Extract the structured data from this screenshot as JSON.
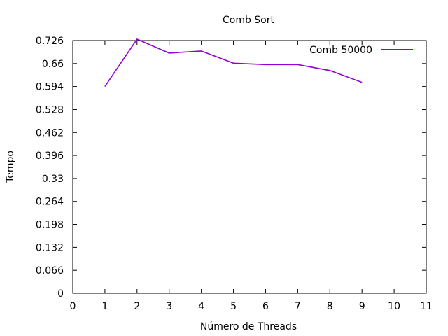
{
  "chart_data": {
    "type": "line",
    "title": "Comb Sort",
    "xlabel": "Número de Threads",
    "ylabel": "Tempo",
    "xlim": [
      0,
      11
    ],
    "ylim": [
      0,
      0.726
    ],
    "x_ticks": [
      0,
      1,
      2,
      3,
      4,
      5,
      6,
      7,
      8,
      9,
      10,
      11
    ],
    "y_ticks": [
      "0",
      "0.066",
      "0.132",
      "0.198",
      "0.264",
      "0.33",
      "0.396",
      "0.462",
      "0.528",
      "0.594",
      "0.66",
      "0.726"
    ],
    "grid": false,
    "legend_position": "top-right",
    "series": [
      {
        "name": "Comb 50000",
        "color": "#9400d3",
        "x": [
          1,
          2,
          3,
          4,
          5,
          6,
          7,
          8,
          9
        ],
        "y": [
          0.594,
          0.73,
          0.69,
          0.696,
          0.661,
          0.657,
          0.657,
          0.64,
          0.606
        ]
      }
    ]
  }
}
